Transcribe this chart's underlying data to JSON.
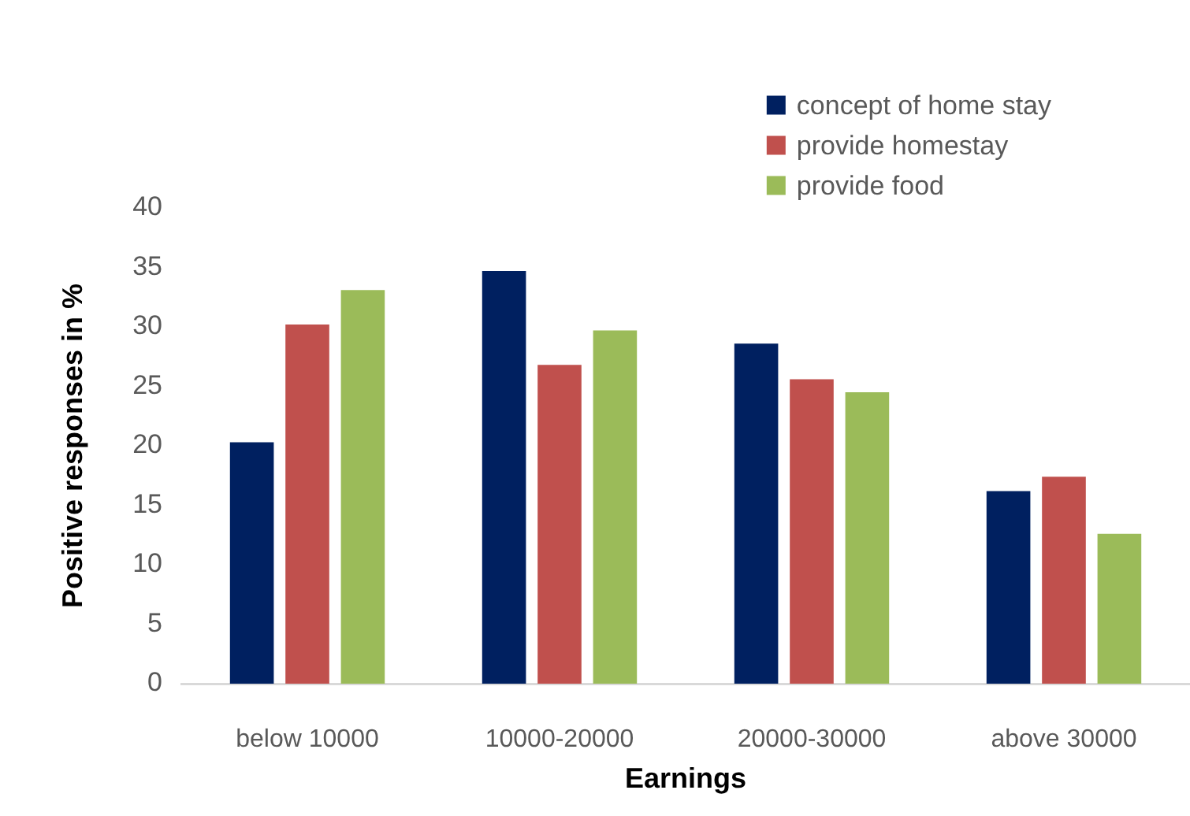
{
  "chart_data": {
    "type": "bar",
    "xlabel": "Earnings",
    "ylabel": "Positive responses in %",
    "categories": [
      "below 10000",
      "10000-20000",
      "20000-30000",
      "above 30000"
    ],
    "series": [
      {
        "name": "concept of home stay",
        "color": "#002060",
        "values": [
          20.3,
          34.7,
          28.6,
          16.2
        ]
      },
      {
        "name": "provide homestay",
        "color": "#c0504d",
        "values": [
          30.2,
          26.8,
          25.6,
          17.4
        ]
      },
      {
        "name": "provide food",
        "color": "#9bbb59",
        "values": [
          33.1,
          29.7,
          24.5,
          12.6
        ]
      }
    ],
    "ylim": [
      0,
      40
    ],
    "yticks": [
      0,
      5,
      10,
      15,
      20,
      25,
      30,
      35,
      40
    ],
    "legend": "top right"
  }
}
